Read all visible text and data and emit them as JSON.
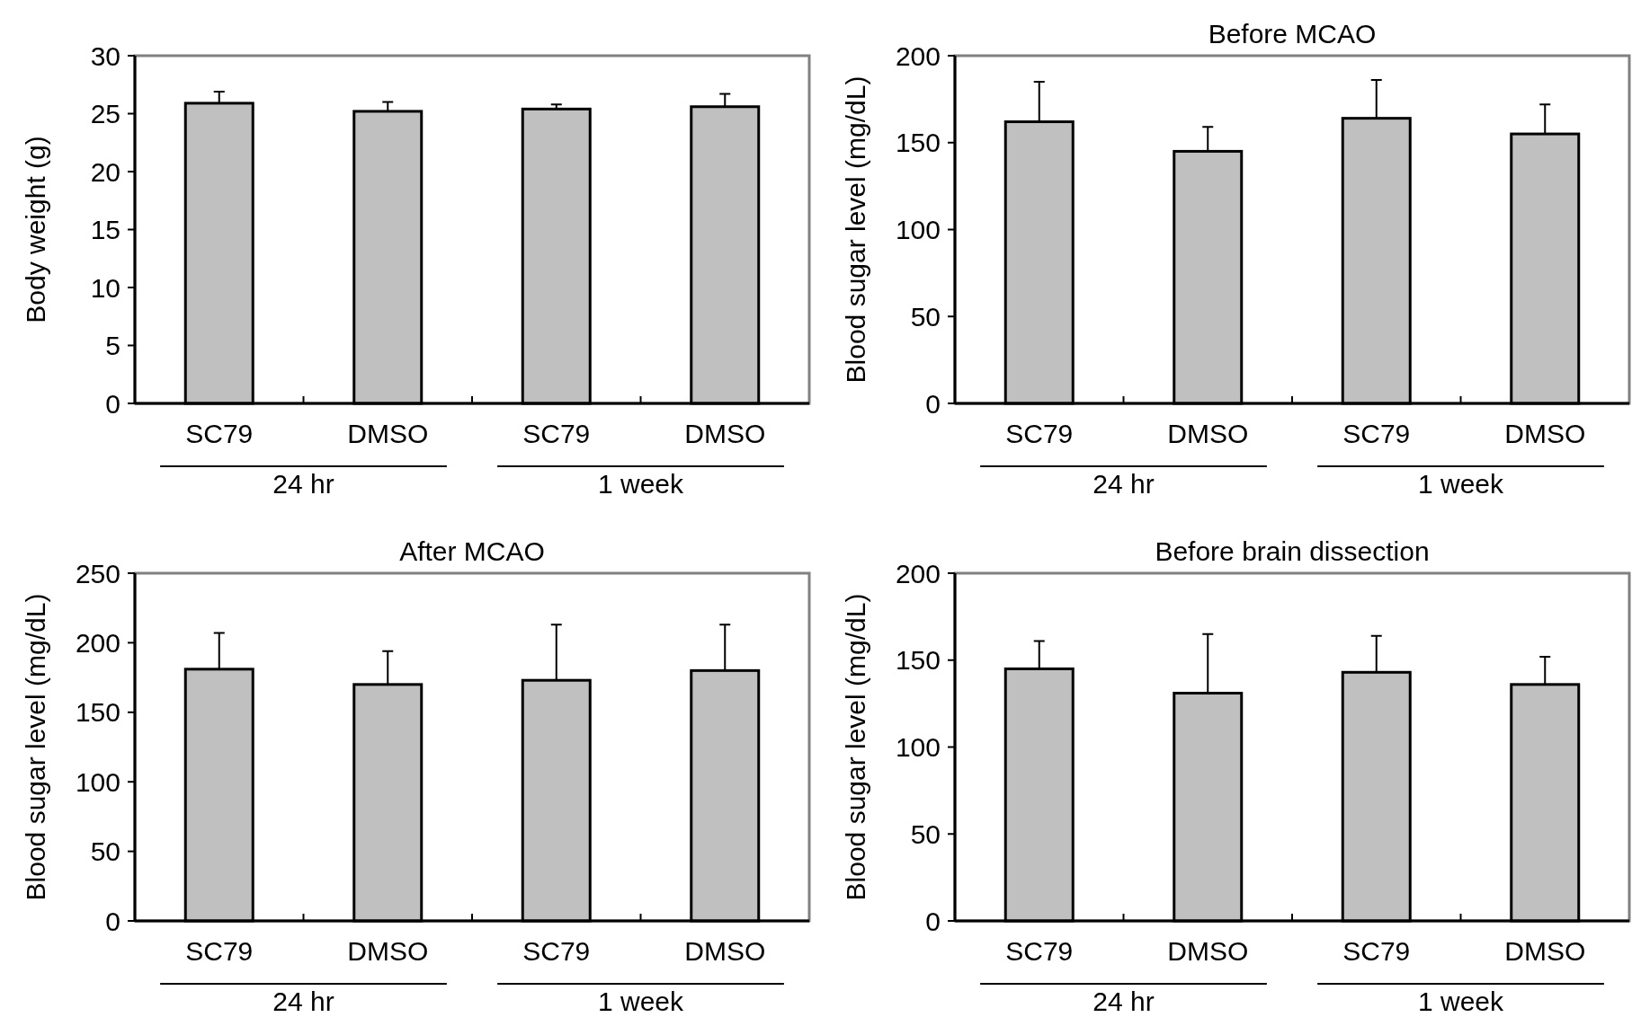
{
  "chart_data": [
    {
      "type": "bar",
      "ylabel": "Body weight (g)",
      "categories": [
        "SC79",
        "DMSO",
        "SC79",
        "DMSO"
      ],
      "values": [
        25.9,
        25.2,
        25.4,
        25.6
      ],
      "errors": [
        [
          25.9,
          26.9
        ],
        [
          25.2,
          26.0
        ],
        [
          25.4,
          25.8
        ],
        [
          25.6,
          26.7
        ]
      ],
      "color": "#c0c0c0",
      "ylim": [
        0,
        30
      ],
      "yticks": [
        0,
        5,
        10,
        15,
        20,
        25,
        30
      ],
      "annotations": [
        "24 hr",
        "1 week"
      ]
    },
    {
      "type": "bar",
      "title": "Before MCAO",
      "ylabel": "Blood sugar level (mg/dL)",
      "categories": [
        "SC79",
        "DMSO",
        "SC79",
        "DMSO"
      ],
      "values": [
        162,
        145,
        164,
        155
      ],
      "errors": [
        [
          162,
          185
        ],
        [
          145,
          159
        ],
        [
          164,
          186
        ],
        [
          155,
          172
        ]
      ],
      "color": "#c0c0c0",
      "ylim": [
        0,
        200
      ],
      "yticks": [
        0,
        50,
        100,
        150,
        200
      ],
      "annotations": [
        "24 hr",
        "1 week"
      ]
    },
    {
      "type": "bar",
      "title": "After MCAO",
      "ylabel": "Blood sugar level (mg/dL)",
      "categories": [
        "SC79",
        "DMSO",
        "SC79",
        "DMSO"
      ],
      "values": [
        181,
        170,
        173,
        180
      ],
      "errors": [
        [
          181,
          207
        ],
        [
          170,
          194
        ],
        [
          173,
          213
        ],
        [
          180,
          213
        ]
      ],
      "color": "#c0c0c0",
      "ylim": [
        0,
        250
      ],
      "yticks": [
        0,
        50,
        100,
        150,
        200,
        250
      ],
      "annotations": [
        "24 hr",
        "1 week"
      ]
    },
    {
      "type": "bar",
      "title": "Before brain dissection",
      "ylabel": "Blood sugar level (mg/dL)",
      "categories": [
        "SC79",
        "DMSO",
        "SC79",
        "DMSO"
      ],
      "values": [
        145,
        131,
        143,
        136
      ],
      "errors": [
        [
          145,
          161
        ],
        [
          131,
          165
        ],
        [
          143,
          164
        ],
        [
          136,
          152
        ]
      ],
      "color": "#c0c0c0",
      "ylim": [
        0,
        200
      ],
      "yticks": [
        0,
        50,
        100,
        150,
        200
      ],
      "annotations": [
        "24 hr",
        "1 week"
      ]
    }
  ]
}
